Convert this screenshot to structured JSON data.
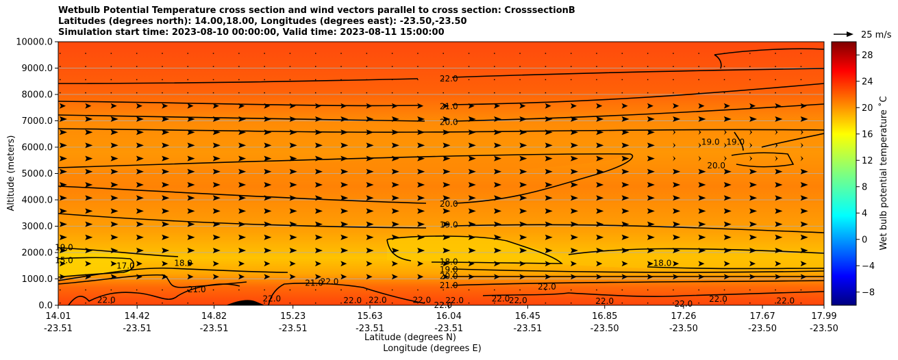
{
  "chart_data": {
    "type": "heatmap",
    "title_lines": [
      "Wetbulb Potential Temperature cross section and wind vectors parallel to cross section: CrosssectionB",
      "Latitudes (degrees north): 14.00,18.00, Longitudes (degrees east): -23.50,-23.50",
      "Simulation start time: 2023-08-10 00:00:00, Valid time: 2023-08-11 15:00:00"
    ],
    "ylabel": "Altitude (meters)",
    "xlabel_lat": "Latitude (degrees N)",
    "xlabel_lon": "Longitude (degrees E)",
    "ylim": [
      0,
      10000
    ],
    "y_ticks": [
      "0.0",
      "1000.0",
      "2000.0",
      "3000.0",
      "4000.0",
      "5000.0",
      "6000.0",
      "7000.0",
      "8000.0",
      "9000.0",
      "10000.0"
    ],
    "x_ticks": [
      {
        "lat": "14.01",
        "lon": "-23.51",
        "value": 14.01
      },
      {
        "lat": "14.42",
        "lon": "-23.51",
        "value": 14.42
      },
      {
        "lat": "14.82",
        "lon": "-23.51",
        "value": 14.82
      },
      {
        "lat": "15.23",
        "lon": "-23.51",
        "value": 15.23
      },
      {
        "lat": "15.63",
        "lon": "-23.51",
        "value": 15.63
      },
      {
        "lat": "16.04",
        "lon": "-23.51",
        "value": 16.04
      },
      {
        "lat": "16.45",
        "lon": "-23.51",
        "value": 16.45
      },
      {
        "lat": "16.85",
        "lon": "-23.50",
        "value": 16.85
      },
      {
        "lat": "17.26",
        "lon": "-23.50",
        "value": 17.26
      },
      {
        "lat": "17.67",
        "lon": "-23.50",
        "value": 17.67
      },
      {
        "lat": "17.99",
        "lon": "-23.50",
        "value": 17.99
      }
    ],
    "xlim": [
      14.01,
      17.99
    ],
    "colorbar": {
      "label": "Wet bulb potential temperature ˚C",
      "range": [
        -10,
        30
      ],
      "ticks": [
        "−8",
        "−4",
        "0",
        "4",
        "8",
        "12",
        "16",
        "20",
        "24",
        "28"
      ],
      "tick_values": [
        -8,
        -4,
        0,
        4,
        8,
        12,
        16,
        20,
        24,
        28
      ]
    },
    "quiver_key": "25 m/s",
    "contour_labels": [
      {
        "text": "22.0",
        "lat": 16.04,
        "alt": 8600
      },
      {
        "text": "21.0",
        "lat": 16.04,
        "alt": 7550
      },
      {
        "text": "20.0",
        "lat": 16.04,
        "alt": 6950
      },
      {
        "text": "20.0",
        "lat": 16.04,
        "alt": 3850
      },
      {
        "text": "19.0",
        "lat": 16.04,
        "alt": 3050
      },
      {
        "text": "18.0",
        "lat": 16.04,
        "alt": 1650
      },
      {
        "text": "19.0",
        "lat": 16.04,
        "alt": 1350
      },
      {
        "text": "20.0",
        "lat": 16.04,
        "alt": 1100
      },
      {
        "text": "21.0",
        "lat": 16.04,
        "alt": 750
      },
      {
        "text": "22.0",
        "lat": 15.42,
        "alt": 900
      },
      {
        "text": "21.0",
        "lat": 15.34,
        "alt": 850
      },
      {
        "text": "21.0",
        "lat": 14.73,
        "alt": 600
      },
      {
        "text": "18.0",
        "lat": 14.66,
        "alt": 1600
      },
      {
        "text": "19.0",
        "lat": 14.04,
        "alt": 2200
      },
      {
        "text": "15.0",
        "lat": 14.04,
        "alt": 1700
      },
      {
        "text": "17.0",
        "lat": 14.36,
        "alt": 1500
      },
      {
        "text": "22.0",
        "lat": 14.26,
        "alt": 200
      },
      {
        "text": "22.0",
        "lat": 15.12,
        "alt": 250
      },
      {
        "text": "22.0",
        "lat": 15.54,
        "alt": 180
      },
      {
        "text": "22.0",
        "lat": 15.67,
        "alt": 200
      },
      {
        "text": "22.0",
        "lat": 15.9,
        "alt": 200
      },
      {
        "text": "22.0",
        "lat": 16.01,
        "alt": 0
      },
      {
        "text": "22.0",
        "lat": 16.07,
        "alt": 180
      },
      {
        "text": "22.0",
        "lat": 16.31,
        "alt": 250
      },
      {
        "text": "22.0",
        "lat": 16.4,
        "alt": 180
      },
      {
        "text": "22.0",
        "lat": 16.55,
        "alt": 700
      },
      {
        "text": "22.0",
        "lat": 16.85,
        "alt": 150
      },
      {
        "text": "22.0",
        "lat": 17.26,
        "alt": 50
      },
      {
        "text": "22.0",
        "lat": 17.44,
        "alt": 230
      },
      {
        "text": "22.0",
        "lat": 17.79,
        "alt": 170
      },
      {
        "text": "18.0",
        "lat": 17.15,
        "alt": 1600
      },
      {
        "text": "19.0",
        "lat": 17.4,
        "alt": 6200
      },
      {
        "text": "19.0",
        "lat": 17.53,
        "alt": 6200
      },
      {
        "text": "20.0",
        "lat": 17.43,
        "alt": 5300
      }
    ]
  }
}
